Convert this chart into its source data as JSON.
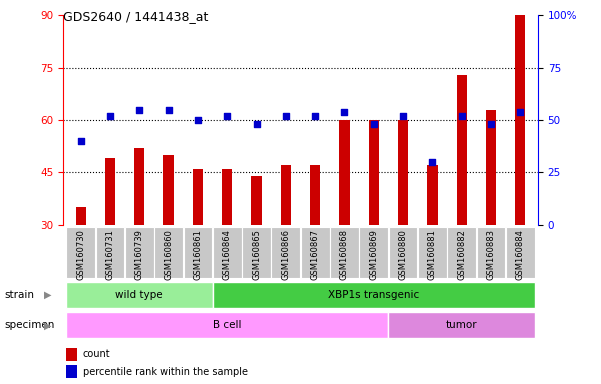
{
  "title": "GDS2640 / 1441438_at",
  "samples": [
    "GSM160730",
    "GSM160731",
    "GSM160739",
    "GSM160860",
    "GSM160861",
    "GSM160864",
    "GSM160865",
    "GSM160866",
    "GSM160867",
    "GSM160868",
    "GSM160869",
    "GSM160880",
    "GSM160881",
    "GSM160882",
    "GSM160883",
    "GSM160884"
  ],
  "counts": [
    35,
    49,
    52,
    50,
    46,
    46,
    44,
    47,
    47,
    60,
    60,
    60,
    47,
    73,
    63,
    90
  ],
  "percentiles": [
    40,
    52,
    55,
    55,
    50,
    52,
    48,
    52,
    52,
    54,
    48,
    52,
    30,
    52,
    48,
    54
  ],
  "y_min": 30,
  "y_max": 90,
  "y_ticks_left": [
    30,
    45,
    60,
    75,
    90
  ],
  "y_ticks_right": [
    0,
    25,
    50,
    75,
    100
  ],
  "bar_color": "#cc0000",
  "dot_color": "#0000cc",
  "strain_groups": [
    {
      "label": "wild type",
      "start": 0,
      "end": 4,
      "color": "#99ee99"
    },
    {
      "label": "XBP1s transgenic",
      "start": 5,
      "end": 15,
      "color": "#44cc44"
    }
  ],
  "specimen_groups": [
    {
      "label": "B cell",
      "start": 0,
      "end": 10,
      "color": "#ff99ff"
    },
    {
      "label": "tumor",
      "start": 11,
      "end": 15,
      "color": "#dd88dd"
    }
  ],
  "tick_label_bg": "#c8c8c8",
  "bar_width": 0.35
}
